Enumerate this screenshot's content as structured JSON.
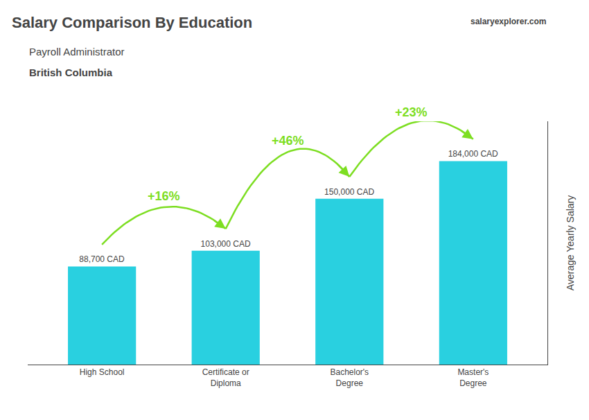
{
  "chart_data": {
    "type": "bar",
    "title": "Salary Comparison By Education",
    "subtitle": [
      "Payroll Administrator",
      "British Columbia"
    ],
    "source": "salaryexplorer.com",
    "ylabel": "Average Yearly Salary",
    "categories": [
      "High School",
      "Certificate or\nDiploma",
      "Bachelor's\nDegree",
      "Master's\nDegree"
    ],
    "values": [
      88700,
      103000,
      150000,
      184000
    ],
    "value_labels": [
      "88,700 CAD",
      "103,000 CAD",
      "150,000 CAD",
      "184,000 CAD"
    ],
    "data_labels": true,
    "color": "#29d0e0",
    "ylim": [
      0,
      220000
    ],
    "yticks": [],
    "tick_labels": "x",
    "grid": false,
    "annotations": [
      {
        "text": "+16%",
        "color": "#7dde22"
      },
      {
        "text": "+46%",
        "color": "#7dde22"
      },
      {
        "text": "+23%",
        "color": "#7dde22"
      }
    ]
  }
}
